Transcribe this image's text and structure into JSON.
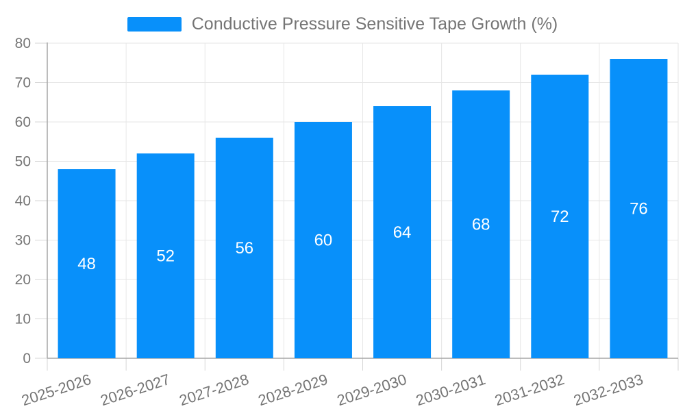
{
  "chart_data": {
    "type": "bar",
    "title": "Conductive Pressure Sensitive Tape Growth (%)",
    "legend": {
      "label": "Conductive Pressure Sensitive Tape Growth (%)",
      "position": "top-center"
    },
    "categories": [
      "2025-2026",
      "2026-2027",
      "2027-2028",
      "2028-2029",
      "2029-2030",
      "2030-2031",
      "2031-2032",
      "2032-2033"
    ],
    "values": [
      48,
      52,
      56,
      60,
      64,
      68,
      72,
      76
    ],
    "value_labels_shown": [
      48,
      52,
      56,
      60,
      64,
      68,
      72,
      76
    ],
    "xlabel": "",
    "ylabel": "",
    "ylim": [
      0,
      80
    ],
    "yticks": [
      0,
      10,
      20,
      30,
      40,
      50,
      60,
      70,
      80
    ],
    "grid": true,
    "x_label_rotate_deg": -18,
    "colors": {
      "bar": "#0890FA",
      "axis_label": "#757575",
      "value_label": "#FFFFFF",
      "grid_line": "#E6E6E6",
      "axis_line": "#A6A6A6",
      "tick": "#D6D6D6",
      "background": "#FFFFFF",
      "legend_text": "#757575"
    }
  }
}
